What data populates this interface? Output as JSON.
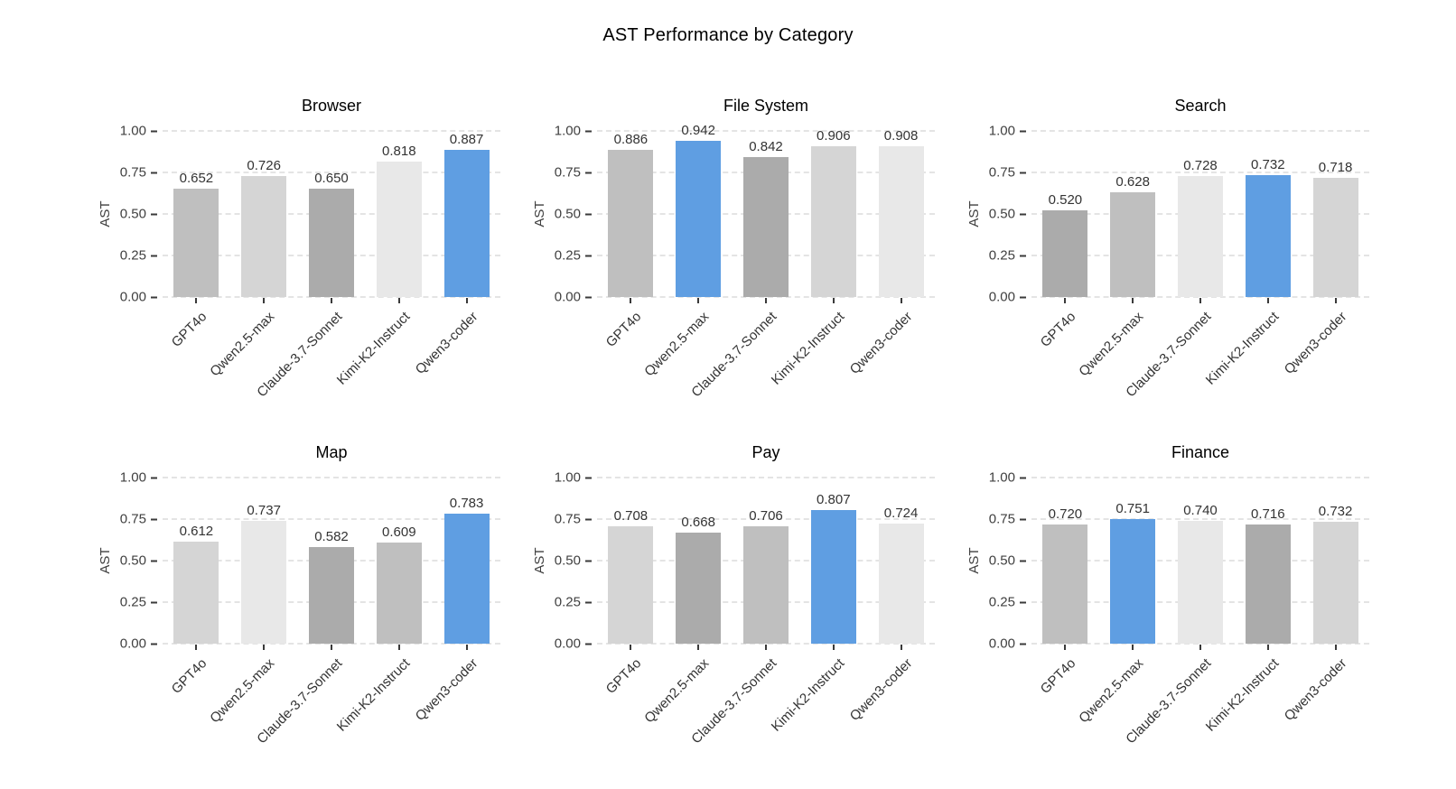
{
  "page_title": "AST Performance by Category",
  "colors": {
    "highlight_blue": "#5f9ee2",
    "rank_grays": [
      "#ababab",
      "#bfbfbf",
      "#d5d5d5",
      "#e8e8e8"
    ],
    "gridline": "#e4e4e4",
    "tick_text": "#404040",
    "label_text": "#333333",
    "background": "#ffffff"
  },
  "models": [
    "GPT4o",
    "Qwen2.5-max",
    "Claude-3.7-Sonnet",
    "Kimi-K2-Instruct",
    "Qwen3-coder"
  ],
  "chart_data": [
    {
      "type": "bar",
      "title": "Browser",
      "ylabel": "AST",
      "categories": [
        "GPT4o",
        "Qwen2.5-max",
        "Claude-3.7-Sonnet",
        "Kimi-K2-Instruct",
        "Qwen3-coder"
      ],
      "values": [
        0.652,
        0.726,
        0.65,
        0.818,
        0.887
      ],
      "value_labels": [
        "0.652",
        "0.726",
        "0.650",
        "0.818",
        "0.887"
      ],
      "highlight_index": 4,
      "ylim": [
        0,
        1
      ],
      "yticks": [
        0.0,
        0.25,
        0.5,
        0.75,
        1.0
      ],
      "ytick_labels": [
        "0.00",
        "0.25",
        "0.50",
        "0.75",
        "1.00"
      ],
      "grid": "dashed-horizontal"
    },
    {
      "type": "bar",
      "title": "File System",
      "ylabel": "AST",
      "categories": [
        "GPT4o",
        "Qwen2.5-max",
        "Claude-3.7-Sonnet",
        "Kimi-K2-Instruct",
        "Qwen3-coder"
      ],
      "values": [
        0.886,
        0.942,
        0.842,
        0.906,
        0.908
      ],
      "value_labels": [
        "0.886",
        "0.942",
        "0.842",
        "0.906",
        "0.908"
      ],
      "highlight_index": 1,
      "ylim": [
        0,
        1
      ],
      "yticks": [
        0.0,
        0.25,
        0.5,
        0.75,
        1.0
      ],
      "ytick_labels": [
        "0.00",
        "0.25",
        "0.50",
        "0.75",
        "1.00"
      ],
      "grid": "dashed-horizontal"
    },
    {
      "type": "bar",
      "title": "Search",
      "ylabel": "AST",
      "categories": [
        "GPT4o",
        "Qwen2.5-max",
        "Claude-3.7-Sonnet",
        "Kimi-K2-Instruct",
        "Qwen3-coder"
      ],
      "values": [
        0.52,
        0.628,
        0.728,
        0.732,
        0.718
      ],
      "value_labels": [
        "0.520",
        "0.628",
        "0.728",
        "0.732",
        "0.718"
      ],
      "highlight_index": 3,
      "ylim": [
        0,
        1
      ],
      "yticks": [
        0.0,
        0.25,
        0.5,
        0.75,
        1.0
      ],
      "ytick_labels": [
        "0.00",
        "0.25",
        "0.50",
        "0.75",
        "1.00"
      ],
      "grid": "dashed-horizontal"
    },
    {
      "type": "bar",
      "title": "Map",
      "ylabel": "AST",
      "categories": [
        "GPT4o",
        "Qwen2.5-max",
        "Claude-3.7-Sonnet",
        "Kimi-K2-Instruct",
        "Qwen3-coder"
      ],
      "values": [
        0.612,
        0.737,
        0.582,
        0.609,
        0.783
      ],
      "value_labels": [
        "0.612",
        "0.737",
        "0.582",
        "0.609",
        "0.783"
      ],
      "highlight_index": 4,
      "ylim": [
        0,
        1
      ],
      "yticks": [
        0.0,
        0.25,
        0.5,
        0.75,
        1.0
      ],
      "ytick_labels": [
        "0.00",
        "0.25",
        "0.50",
        "0.75",
        "1.00"
      ],
      "grid": "dashed-horizontal"
    },
    {
      "type": "bar",
      "title": "Pay",
      "ylabel": "AST",
      "categories": [
        "GPT4o",
        "Qwen2.5-max",
        "Claude-3.7-Sonnet",
        "Kimi-K2-Instruct",
        "Qwen3-coder"
      ],
      "values": [
        0.708,
        0.668,
        0.706,
        0.807,
        0.724
      ],
      "value_labels": [
        "0.708",
        "0.668",
        "0.706",
        "0.807",
        "0.724"
      ],
      "highlight_index": 3,
      "ylim": [
        0,
        1
      ],
      "yticks": [
        0.0,
        0.25,
        0.5,
        0.75,
        1.0
      ],
      "ytick_labels": [
        "0.00",
        "0.25",
        "0.50",
        "0.75",
        "1.00"
      ],
      "grid": "dashed-horizontal"
    },
    {
      "type": "bar",
      "title": "Finance",
      "ylabel": "AST",
      "categories": [
        "GPT4o",
        "Qwen2.5-max",
        "Claude-3.7-Sonnet",
        "Kimi-K2-Instruct",
        "Qwen3-coder"
      ],
      "values": [
        0.72,
        0.751,
        0.74,
        0.716,
        0.732
      ],
      "value_labels": [
        "0.720",
        "0.751",
        "0.740",
        "0.716",
        "0.732"
      ],
      "highlight_index": 1,
      "ylim": [
        0,
        1
      ],
      "yticks": [
        0.0,
        0.25,
        0.5,
        0.75,
        1.0
      ],
      "ytick_labels": [
        "0.00",
        "0.25",
        "0.50",
        "0.75",
        "1.00"
      ],
      "grid": "dashed-horizontal"
    }
  ]
}
